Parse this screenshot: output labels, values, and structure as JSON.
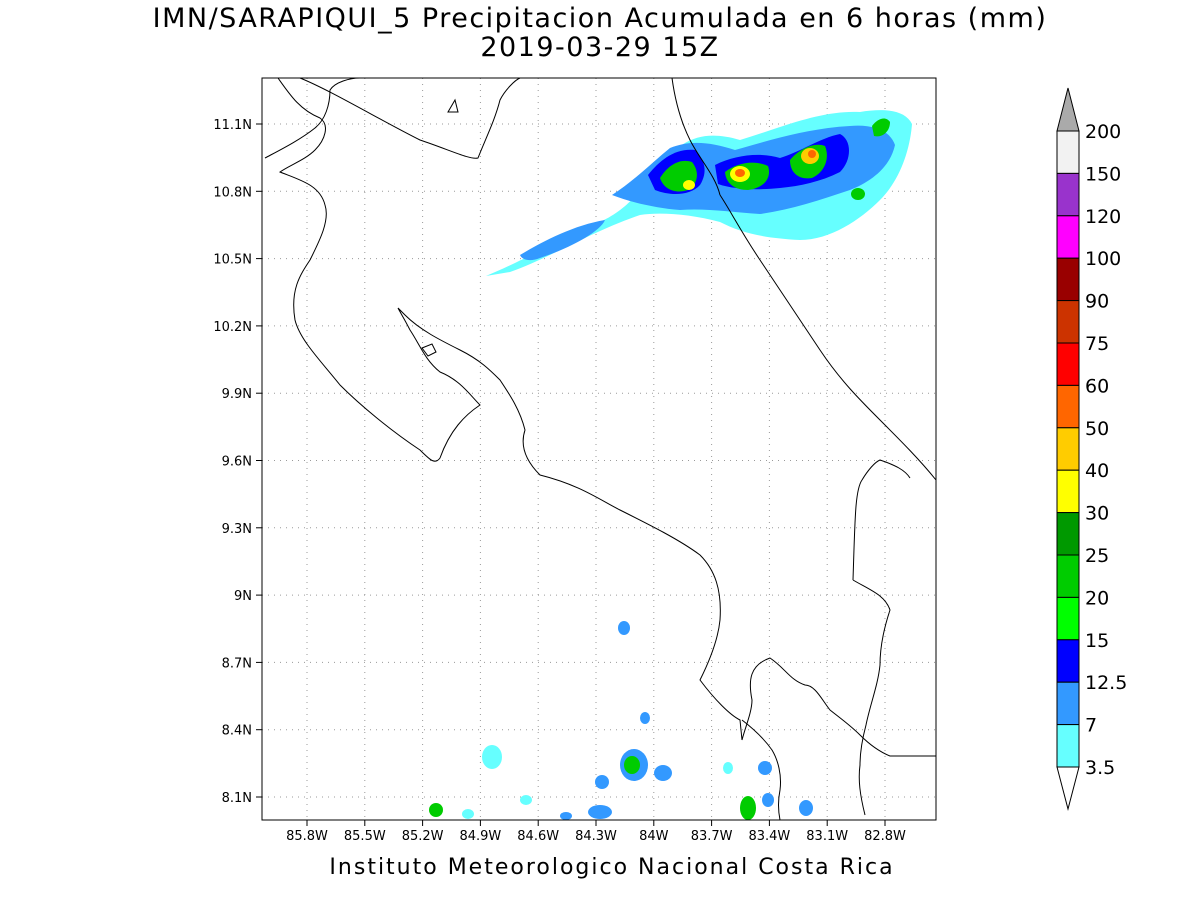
{
  "header": {
    "title": "IMN/SARAPIQUI_5 Precipitacion Acumulada en 6 horas (mm)",
    "subtitle": "2019-03-29 15Z"
  },
  "footer": {
    "credit": "Instituto Meteorologico Nacional Costa Rica"
  },
  "map": {
    "lon_range": [
      -86.1,
      -83.1
    ],
    "lat_range": [
      8.0,
      11.2
    ],
    "lon_ticks": [
      "85.8W",
      "85.5W",
      "85.2W",
      "84.9W",
      "84.6W",
      "84.3W",
      "84W",
      "83.7W",
      "83.4W",
      "83.1W",
      "82.8W"
    ],
    "lat_ticks": [
      "8.1N",
      "8.4N",
      "8.7N",
      "9N",
      "9.3N",
      "9.6N",
      "9.9N",
      "10.2N",
      "10.5N",
      "10.8N",
      "11.1N"
    ],
    "grid": "dotted",
    "coastline_color": "#000000"
  },
  "colorbar": {
    "labels": [
      "3.5",
      "7",
      "12.5",
      "15",
      "20",
      "25",
      "30",
      "40",
      "50",
      "60",
      "75",
      "90",
      "100",
      "120",
      "150",
      "200"
    ],
    "colors": [
      "#66ffff",
      "#3399ff",
      "#0000ff",
      "#00ff00",
      "#00cc00",
      "#009900",
      "#ffff00",
      "#ffcc00",
      "#ff6600",
      "#ff0000",
      "#cc3300",
      "#990000",
      "#ff00ff",
      "#9933cc",
      "#f2f2f2",
      "#aaaaaa"
    ]
  }
}
